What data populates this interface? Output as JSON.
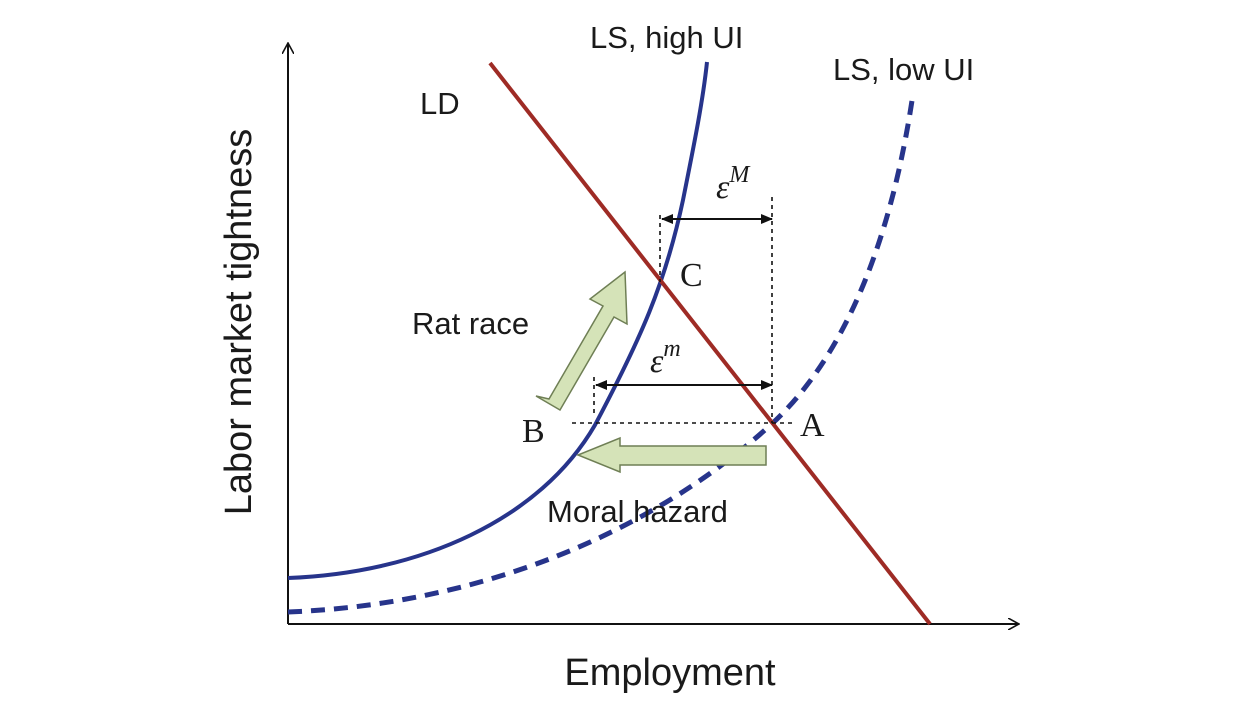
{
  "axes": {
    "x_label": "Employment",
    "y_label": "Labor market tightness"
  },
  "curves": {
    "ld_label": "LD",
    "ls_high_label": "LS, high UI",
    "ls_low_label": "LS, low UI"
  },
  "points": {
    "a": "A",
    "b": "B",
    "c": "C"
  },
  "epsilon": {
    "symbol": "ε",
    "upper_superscript": "M",
    "lower_superscript": "m"
  },
  "arrows": {
    "rat_race_label": "Rat race",
    "moral_hazard_label": "Moral hazard"
  },
  "colors": {
    "ld": "#9e2b25",
    "ls": "#27348b",
    "arrow_fill": "#d5e3b8",
    "arrow_stroke": "#6f7f55",
    "axis": "#111111"
  }
}
